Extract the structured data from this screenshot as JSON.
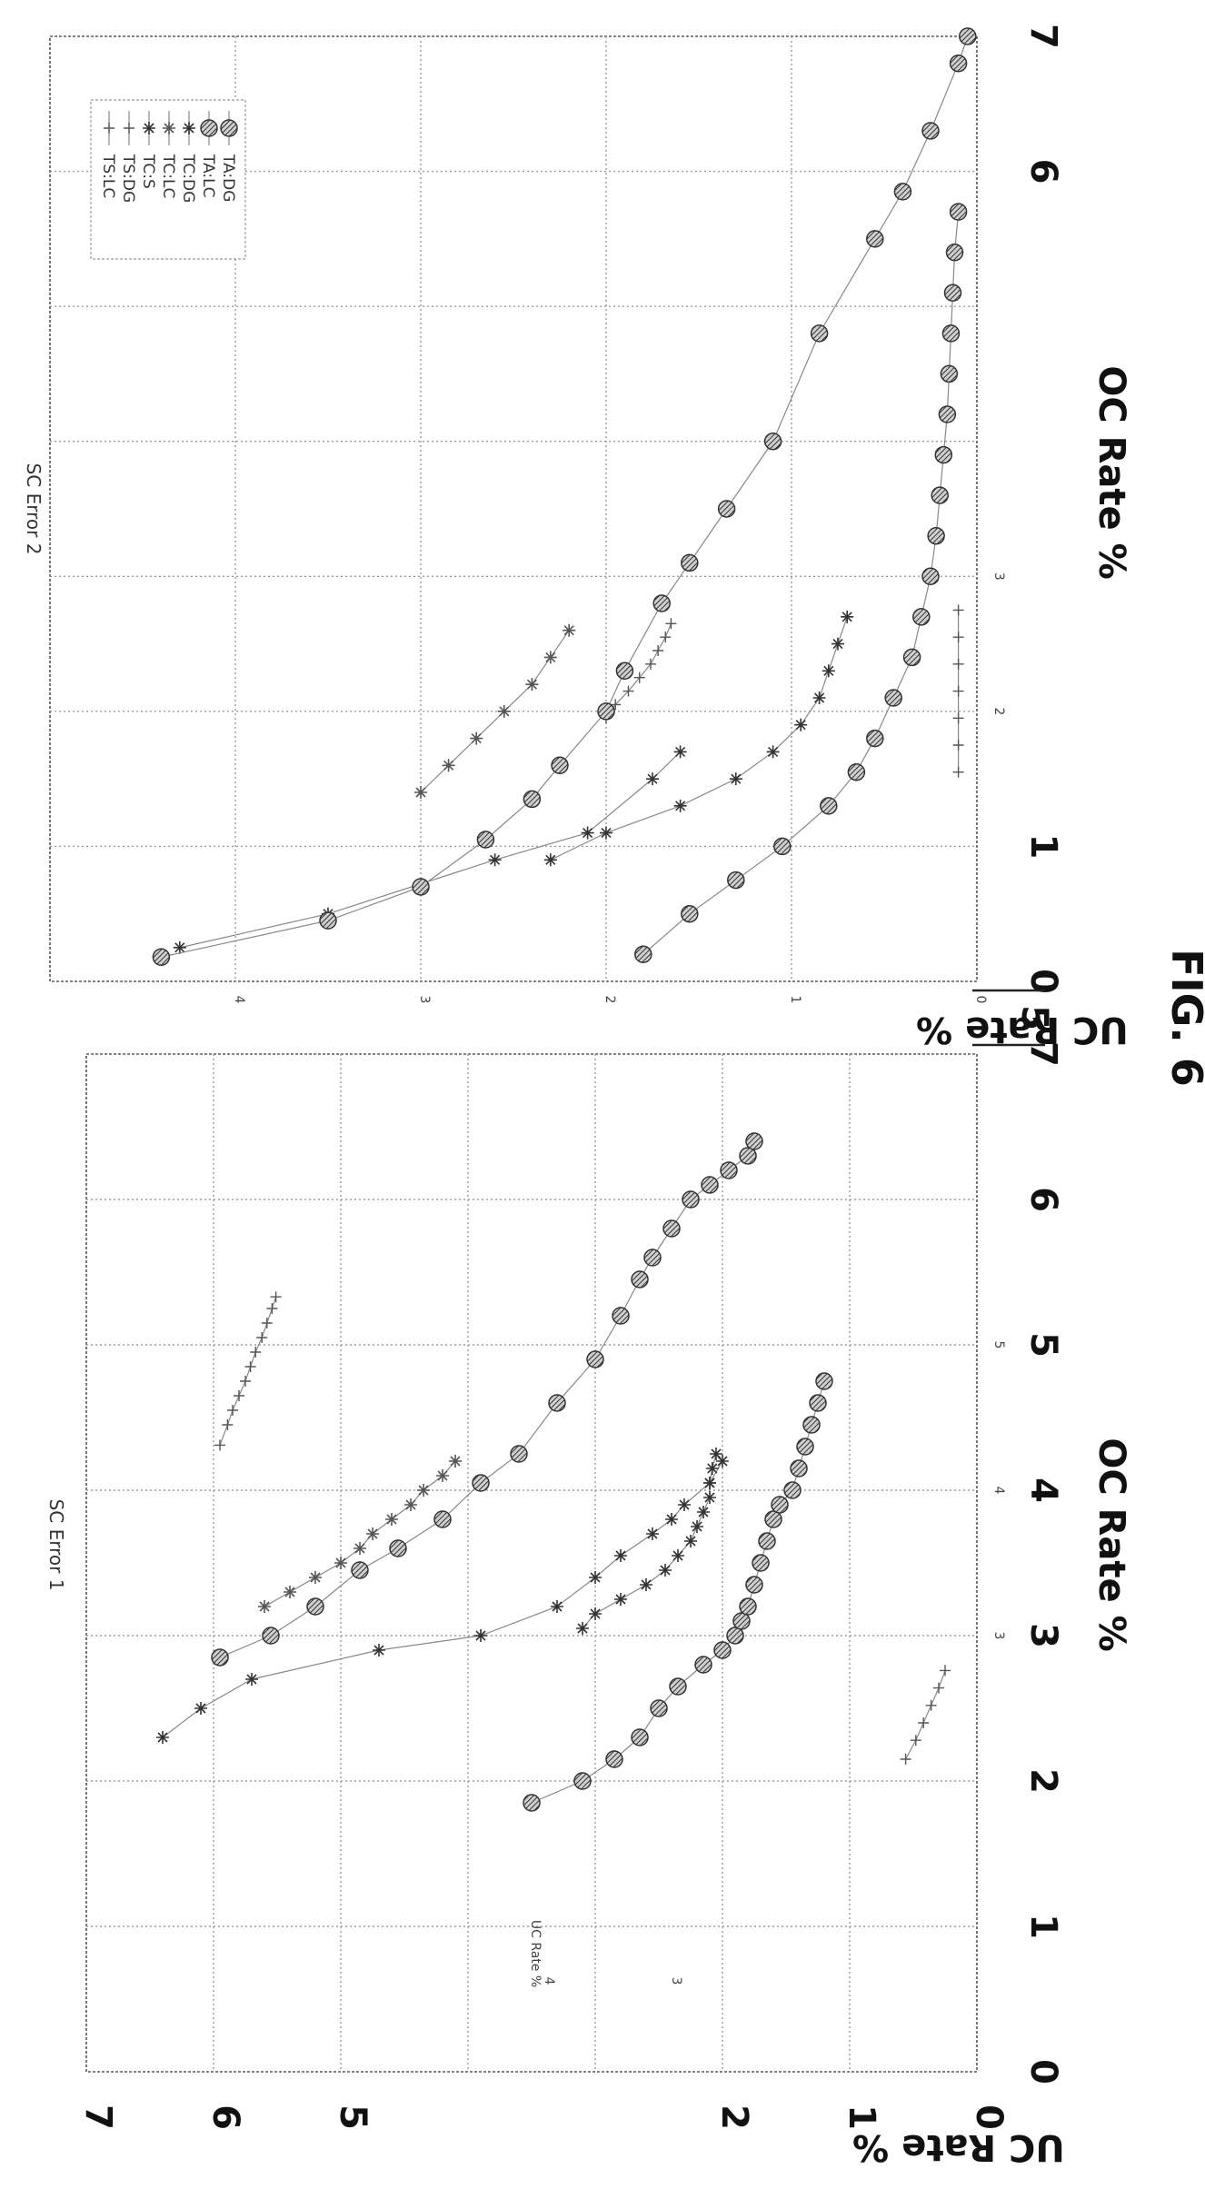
{
  "figure_label": "FIG. 6",
  "legend": [
    "TS:LC",
    "TS:DG",
    "TC:S",
    "TC:LC",
    "TC:DG",
    "TA:LC",
    "TA:DG"
  ],
  "series_styles": {
    "TS:LC": {
      "marker": "plus",
      "color": "#555555"
    },
    "TS:DG": {
      "marker": "plus",
      "color": "#555555"
    },
    "TC:S": {
      "marker": "star",
      "color": "#333333"
    },
    "TC:LC": {
      "marker": "star",
      "color": "#555555"
    },
    "TC:DG": {
      "marker": "star",
      "color": "#333333"
    },
    "TA:LC": {
      "marker": "hatchdot",
      "color": "#333333"
    },
    "TA:DG": {
      "marker": "hatchdot",
      "color": "#333333"
    }
  },
  "chart_data": [
    {
      "type": "scatter",
      "title": "SC Error 1",
      "xlabel": "OC Rate %",
      "ylabel": "UC Rate %",
      "inner_ylabel": "UC Rate %",
      "xlim": [
        0,
        7
      ],
      "ylim": [
        0,
        7
      ],
      "x_ticks": [
        "0",
        "1",
        "2",
        "3",
        "4",
        "5",
        "6",
        "7"
      ],
      "y_ticks": [
        "0",
        "1",
        "2",
        "5",
        "6",
        "7"
      ],
      "inner_x_ticks": [
        "3",
        "4",
        "5"
      ],
      "inner_y_ticks": [
        "3",
        "4"
      ],
      "grid": true,
      "series": [
        {
          "name": "TS:LC",
          "x": [
            4.31,
            4.45,
            4.55,
            4.65,
            4.75,
            4.85,
            4.95,
            5.05,
            5.15,
            5.25,
            5.33
          ],
          "y": [
            5.95,
            5.89,
            5.85,
            5.8,
            5.75,
            5.71,
            5.67,
            5.62,
            5.58,
            5.54,
            5.51
          ]
        },
        {
          "name": "TS:DG",
          "x": [
            2.15,
            2.28,
            2.4,
            2.52,
            2.64,
            2.76
          ],
          "y": [
            0.56,
            0.48,
            0.42,
            0.36,
            0.3,
            0.25
          ]
        },
        {
          "name": "TC:S",
          "x": [
            2.3,
            2.5,
            2.7,
            2.9,
            3.0,
            3.2,
            3.4,
            3.55,
            3.7,
            3.8,
            3.9,
            4.05,
            4.2
          ],
          "y": [
            6.4,
            6.1,
            5.7,
            4.7,
            3.9,
            3.3,
            3.0,
            2.8,
            2.55,
            2.4,
            2.3,
            2.1,
            2.0
          ]
        },
        {
          "name": "TC:LC",
          "x": [
            3.2,
            3.3,
            3.4,
            3.5,
            3.6,
            3.7,
            3.8,
            3.9,
            4.0,
            4.1,
            4.2
          ],
          "y": [
            5.6,
            5.4,
            5.2,
            5.0,
            4.85,
            4.75,
            4.6,
            4.45,
            4.35,
            4.2,
            4.1
          ]
        },
        {
          "name": "TC:DG",
          "x": [
            3.05,
            3.15,
            3.25,
            3.35,
            3.45,
            3.55,
            3.65,
            3.75,
            3.85,
            3.95,
            4.05,
            4.15,
            4.25
          ],
          "y": [
            3.1,
            3.0,
            2.8,
            2.6,
            2.45,
            2.35,
            2.25,
            2.2,
            2.15,
            2.1,
            2.1,
            2.08,
            2.05
          ]
        },
        {
          "name": "TA:LC",
          "x": [
            2.85,
            3.0,
            3.2,
            3.45,
            3.6,
            3.8,
            4.05,
            4.25,
            4.6,
            4.9,
            5.2,
            5.45,
            5.6,
            5.8,
            6.0,
            6.1,
            6.2,
            6.3,
            6.4
          ],
          "y": [
            5.95,
            5.55,
            5.2,
            4.85,
            4.55,
            4.2,
            3.9,
            3.6,
            3.3,
            3.0,
            2.8,
            2.65,
            2.55,
            2.4,
            2.25,
            2.1,
            1.95,
            1.8,
            1.75
          ]
        },
        {
          "name": "TA:DG",
          "x": [
            1.85,
            2.0,
            2.15,
            2.3,
            2.5,
            2.65,
            2.8,
            2.9,
            3.0,
            3.1,
            3.2,
            3.35,
            3.5,
            3.65,
            3.8,
            3.9,
            4.0,
            4.15,
            4.3,
            4.45,
            4.6,
            4.75
          ],
          "y": [
            3.5,
            3.1,
            2.85,
            2.65,
            2.5,
            2.35,
            2.15,
            2.0,
            1.9,
            1.85,
            1.8,
            1.75,
            1.7,
            1.65,
            1.6,
            1.55,
            1.45,
            1.4,
            1.35,
            1.3,
            1.25,
            1.2
          ]
        }
      ]
    },
    {
      "type": "scatter",
      "title": "SC Error 2",
      "xlabel": "OC Rate %",
      "ylabel": "UC Rate %",
      "xlim": [
        0,
        7
      ],
      "ylim": [
        0,
        5
      ],
      "x_ticks": [
        "0",
        "1",
        "6",
        "7"
      ],
      "y_ticks": [
        "5"
      ],
      "inner_x_ticks": [
        "2",
        "3"
      ],
      "inner_y_ticks": [
        "0",
        "1",
        "2",
        "3",
        "4"
      ],
      "grid": true,
      "series": [
        {
          "name": "TS:LC",
          "x": [
            1.95,
            2.05,
            2.15,
            2.25,
            2.35,
            2.45,
            2.55,
            2.65
          ],
          "y": [
            2.0,
            1.95,
            1.88,
            1.82,
            1.76,
            1.72,
            1.68,
            1.65
          ]
        },
        {
          "name": "TS:DG",
          "x": [
            1.55,
            1.75,
            1.95,
            2.15,
            2.35,
            2.55,
            2.75
          ],
          "y": [
            0.1,
            0.1,
            0.1,
            0.1,
            0.1,
            0.1,
            0.1
          ]
        },
        {
          "name": "TC:S",
          "x": [
            0.25,
            0.5,
            0.9,
            1.1,
            1.5,
            1.7
          ],
          "y": [
            4.3,
            3.5,
            2.6,
            2.1,
            1.75,
            1.6
          ]
        },
        {
          "name": "TC:LC",
          "x": [
            1.4,
            1.6,
            1.8,
            2.0,
            2.2,
            2.4,
            2.6
          ],
          "y": [
            3.0,
            2.85,
            2.7,
            2.55,
            2.4,
            2.3,
            2.2
          ]
        },
        {
          "name": "TC:DG",
          "x": [
            0.9,
            1.1,
            1.3,
            1.5,
            1.7,
            1.9,
            2.1,
            2.3,
            2.5,
            2.7
          ],
          "y": [
            2.3,
            2.0,
            1.6,
            1.3,
            1.1,
            0.95,
            0.85,
            0.8,
            0.75,
            0.7
          ]
        },
        {
          "name": "TA:LC",
          "x": [
            0.18,
            0.45,
            0.7,
            1.05,
            1.35,
            1.6,
            2.0,
            2.3,
            2.8,
            3.1,
            3.5,
            4.0,
            4.8,
            5.5,
            5.85,
            6.3,
            6.8,
            7.0
          ],
          "y": [
            4.4,
            3.5,
            3.0,
            2.65,
            2.4,
            2.25,
            2.0,
            1.9,
            1.7,
            1.55,
            1.35,
            1.1,
            0.85,
            0.55,
            0.4,
            0.25,
            0.1,
            0.05
          ]
        },
        {
          "name": "TA:DG",
          "x": [
            0.2,
            0.5,
            0.75,
            1.0,
            1.3,
            1.55,
            1.8,
            2.1,
            2.4,
            2.7,
            3.0,
            3.3,
            3.6,
            3.9,
            4.2,
            4.5,
            4.8,
            5.1,
            5.4,
            5.7
          ],
          "y": [
            1.8,
            1.55,
            1.3,
            1.05,
            0.8,
            0.65,
            0.55,
            0.45,
            0.35,
            0.3,
            0.25,
            0.22,
            0.2,
            0.18,
            0.16,
            0.15,
            0.14,
            0.13,
            0.12,
            0.1
          ]
        }
      ]
    }
  ]
}
